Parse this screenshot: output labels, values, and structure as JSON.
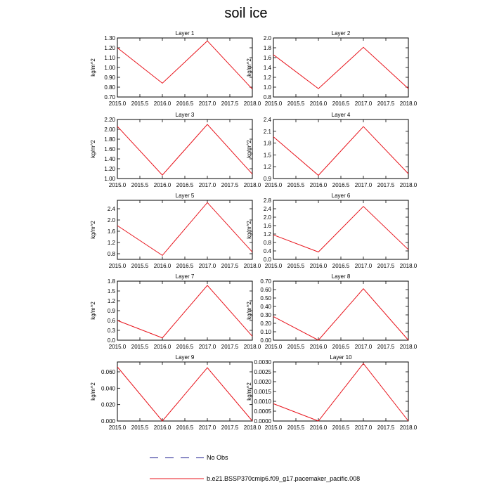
{
  "page": {
    "title": "soil ice"
  },
  "legend": {
    "obs": {
      "label": "No Obs",
      "color": "#1a1a8c"
    },
    "model": {
      "label": "b.e21.BSSP370cmip6.f09_g17.pacemaker_pacific.008",
      "color": "#e8141c"
    }
  },
  "chart_data": [
    {
      "type": "line",
      "title": "Layer 1",
      "ylabel": "kg/m^2",
      "x": [
        2015.0,
        2016.0,
        2017.0,
        2018.0
      ],
      "series": [
        {
          "values": [
            1.2,
            0.84,
            1.27,
            0.78
          ],
          "color": "#e8141c"
        }
      ],
      "xlim": [
        2015.0,
        2018.0
      ],
      "ylim": [
        0.7,
        1.3
      ],
      "xticks": [
        2015.0,
        2015.5,
        2016.0,
        2016.5,
        2017.0,
        2017.5,
        2018.0
      ],
      "xtick_labels": [
        "2015.0",
        "2015.5",
        "2016.0",
        "2016.5",
        "2017.0",
        "2017.5",
        "2018.0"
      ],
      "yticks": [
        0.7,
        0.8,
        0.9,
        1.0,
        1.1,
        1.2,
        1.3
      ],
      "ytick_labels": [
        "0.70",
        "0.80",
        "0.90",
        "1.00",
        "1.10",
        "1.20",
        "1.30"
      ]
    },
    {
      "type": "line",
      "title": "Layer 2",
      "ylabel": "kg/m^2",
      "x": [
        2015.0,
        2016.0,
        2017.0,
        2018.0
      ],
      "series": [
        {
          "values": [
            1.66,
            0.97,
            1.81,
            0.97
          ],
          "color": "#e8141c"
        }
      ],
      "xlim": [
        2015.0,
        2018.0
      ],
      "ylim": [
        0.8,
        2.0
      ],
      "xticks": [
        2015.0,
        2015.5,
        2016.0,
        2016.5,
        2017.0,
        2017.5,
        2018.0
      ],
      "xtick_labels": [
        "2015.0",
        "2015.5",
        "2016.0",
        "2016.5",
        "2017.0",
        "2017.5",
        "2018.0"
      ],
      "yticks": [
        0.8,
        1.0,
        1.2,
        1.4,
        1.6,
        1.8,
        2.0
      ],
      "ytick_labels": [
        "0.8",
        "1.0",
        "1.2",
        "1.4",
        "1.6",
        "1.8",
        "2.0"
      ]
    },
    {
      "type": "line",
      "title": "Layer 3",
      "ylabel": "kg/m^2",
      "x": [
        2015.0,
        2016.0,
        2017.0,
        2018.0
      ],
      "series": [
        {
          "values": [
            2.06,
            1.07,
            2.1,
            1.09
          ],
          "color": "#e8141c"
        }
      ],
      "xlim": [
        2015.0,
        2018.0
      ],
      "ylim": [
        1.0,
        2.2
      ],
      "xticks": [
        2015.0,
        2015.5,
        2016.0,
        2016.5,
        2017.0,
        2017.5,
        2018.0
      ],
      "xtick_labels": [
        "2015.0",
        "2015.5",
        "2016.0",
        "2016.5",
        "2017.0",
        "2017.5",
        "2018.0"
      ],
      "yticks": [
        1.0,
        1.2,
        1.4,
        1.6,
        1.8,
        2.0,
        2.2
      ],
      "ytick_labels": [
        "1.00",
        "1.20",
        "1.40",
        "1.60",
        "1.80",
        "2.00",
        "2.20"
      ]
    },
    {
      "type": "line",
      "title": "Layer 4",
      "ylabel": "kg/m^2",
      "x": [
        2015.0,
        2016.0,
        2017.0,
        2018.0
      ],
      "series": [
        {
          "values": [
            1.96,
            0.98,
            2.22,
            1.02
          ],
          "color": "#e8141c"
        }
      ],
      "xlim": [
        2015.0,
        2018.0
      ],
      "ylim": [
        0.9,
        2.4
      ],
      "xticks": [
        2015.0,
        2015.5,
        2016.0,
        2016.5,
        2017.0,
        2017.5,
        2018.0
      ],
      "xtick_labels": [
        "2015.0",
        "2015.5",
        "2016.0",
        "2016.5",
        "2017.0",
        "2017.5",
        "2018.0"
      ],
      "yticks": [
        0.9,
        1.2,
        1.5,
        1.8,
        2.1,
        2.4
      ],
      "ytick_labels": [
        "0.9",
        "1.2",
        "1.5",
        "1.8",
        "2.1",
        "2.4"
      ]
    },
    {
      "type": "line",
      "title": "Layer 5",
      "ylabel": "kg/m^2",
      "x": [
        2015.0,
        2016.0,
        2017.0,
        2018.0
      ],
      "series": [
        {
          "values": [
            1.8,
            0.74,
            2.62,
            0.86
          ],
          "color": "#e8141c"
        }
      ],
      "xlim": [
        2015.0,
        2018.0
      ],
      "ylim": [
        0.6,
        2.7
      ],
      "xticks": [
        2015.0,
        2015.5,
        2016.0,
        2016.5,
        2017.0,
        2017.5,
        2018.0
      ],
      "xtick_labels": [
        "2015.0",
        "2015.5",
        "2016.0",
        "2016.5",
        "2017.0",
        "2017.5",
        "2018.0"
      ],
      "yticks": [
        0.8,
        1.2,
        1.6,
        2.0,
        2.4
      ],
      "ytick_labels": [
        "0.8",
        "1.2",
        "1.6",
        "2.0",
        "2.4"
      ]
    },
    {
      "type": "line",
      "title": "Layer 6",
      "ylabel": "kg/m^2",
      "x": [
        2015.0,
        2016.0,
        2017.0,
        2018.0
      ],
      "series": [
        {
          "values": [
            1.16,
            0.35,
            2.51,
            0.46
          ],
          "color": "#e8141c"
        }
      ],
      "xlim": [
        2015.0,
        2018.0
      ],
      "ylim": [
        0.0,
        2.8
      ],
      "xticks": [
        2015.0,
        2015.5,
        2016.0,
        2016.5,
        2017.0,
        2017.5,
        2018.0
      ],
      "xtick_labels": [
        "2015.0",
        "2015.5",
        "2016.0",
        "2016.5",
        "2017.0",
        "2017.5",
        "2018.0"
      ],
      "yticks": [
        0.0,
        0.4,
        0.8,
        1.2,
        1.6,
        2.0,
        2.4,
        2.8
      ],
      "ytick_labels": [
        "0.0",
        "0.4",
        "0.8",
        "1.2",
        "1.6",
        "2.0",
        "2.4",
        "2.8"
      ]
    },
    {
      "type": "line",
      "title": "Layer 7",
      "ylabel": "kg/m^2",
      "x": [
        2015.0,
        2016.0,
        2017.0,
        2018.0
      ],
      "series": [
        {
          "values": [
            0.6,
            0.07,
            1.67,
            0.12
          ],
          "color": "#e8141c"
        }
      ],
      "xlim": [
        2015.0,
        2018.0
      ],
      "ylim": [
        0.0,
        1.8
      ],
      "xticks": [
        2015.0,
        2015.5,
        2016.0,
        2016.5,
        2017.0,
        2017.5,
        2018.0
      ],
      "xtick_labels": [
        "2015.0",
        "2015.5",
        "2016.0",
        "2016.5",
        "2017.0",
        "2017.5",
        "2018.0"
      ],
      "yticks": [
        0.0,
        0.3,
        0.6,
        0.9,
        1.2,
        1.5,
        1.8
      ],
      "ytick_labels": [
        "0.0",
        "0.3",
        "0.6",
        "0.9",
        "1.2",
        "1.5",
        "1.8"
      ]
    },
    {
      "type": "line",
      "title": "Layer 8",
      "ylabel": "kg/m^2",
      "x": [
        2015.0,
        2016.0,
        2017.0,
        2018.0
      ],
      "series": [
        {
          "values": [
            0.28,
            0.0,
            0.61,
            0.0
          ],
          "color": "#e8141c"
        }
      ],
      "xlim": [
        2015.0,
        2018.0
      ],
      "ylim": [
        0.0,
        0.7
      ],
      "xticks": [
        2015.0,
        2015.5,
        2016.0,
        2016.5,
        2017.0,
        2017.5,
        2018.0
      ],
      "xtick_labels": [
        "2015.0",
        "2015.5",
        "2016.0",
        "2016.5",
        "2017.0",
        "2017.5",
        "2018.0"
      ],
      "yticks": [
        0.0,
        0.1,
        0.2,
        0.3,
        0.4,
        0.5,
        0.6,
        0.7
      ],
      "ytick_labels": [
        "0.00",
        "0.10",
        "0.20",
        "0.30",
        "0.40",
        "0.50",
        "0.60",
        "0.70"
      ]
    },
    {
      "type": "line",
      "title": "Layer 9",
      "ylabel": "kg/m^2",
      "x": [
        2015.0,
        2016.0,
        2017.0,
        2018.0
      ],
      "series": [
        {
          "values": [
            0.066,
            0.0,
            0.065,
            0.0
          ],
          "color": "#e8141c"
        }
      ],
      "xlim": [
        2015.0,
        2018.0
      ],
      "ylim": [
        0.0,
        0.072
      ],
      "xticks": [
        2015.0,
        2015.5,
        2016.0,
        2016.5,
        2017.0,
        2017.5,
        2018.0
      ],
      "xtick_labels": [
        "2015.0",
        "2015.5",
        "2016.0",
        "2016.5",
        "2017.0",
        "2017.5",
        "2018.0"
      ],
      "yticks": [
        0.0,
        0.02,
        0.04,
        0.06
      ],
      "ytick_labels": [
        "0.000",
        "0.020",
        "0.040",
        "0.060"
      ]
    },
    {
      "type": "line",
      "title": "Layer 10",
      "ylabel": "kg/m^2",
      "x": [
        2015.0,
        2016.0,
        2017.0,
        2018.0
      ],
      "series": [
        {
          "values": [
            0.00088,
            0.0,
            0.00292,
            0.0
          ],
          "color": "#e8141c"
        }
      ],
      "xlim": [
        2015.0,
        2018.0
      ],
      "ylim": [
        0.0,
        0.003
      ],
      "xticks": [
        2015.0,
        2015.5,
        2016.0,
        2016.5,
        2017.0,
        2017.5,
        2018.0
      ],
      "xtick_labels": [
        "2015.0",
        "2015.5",
        "2016.0",
        "2016.5",
        "2017.0",
        "2017.5",
        "2018.0"
      ],
      "yticks": [
        0.0,
        0.0005,
        0.001,
        0.0015,
        0.002,
        0.0025,
        0.003
      ],
      "ytick_labels": [
        "0.0000",
        "0.0005",
        "0.0010",
        "0.0015",
        "0.0020",
        "0.0025",
        "0.0030"
      ]
    }
  ]
}
